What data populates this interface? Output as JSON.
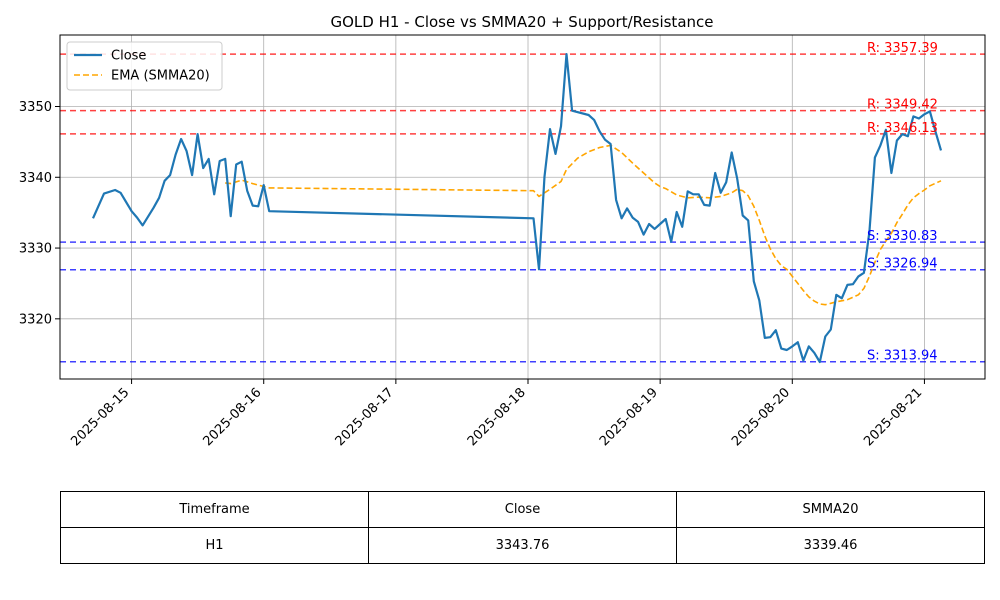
{
  "chart_data": {
    "type": "line",
    "title": "GOLD H1 - Close vs SMMA20 + Support/Resistance",
    "xlabel": "",
    "ylabel": "",
    "xlim": [
      "2025-08-14 11:00",
      "2025-08-21 11:00"
    ],
    "ylim": [
      3311.5,
      3360.1
    ],
    "x_ticks": [
      "2025-08-15",
      "2025-08-16",
      "2025-08-17",
      "2025-08-18",
      "2025-08-19",
      "2025-08-20",
      "2025-08-21"
    ],
    "y_ticks": [
      3320,
      3330,
      3340,
      3350
    ],
    "grid": true,
    "legend_position": "top-left",
    "series": [
      {
        "name": "Close",
        "color": "#1f77b4",
        "style": "solid",
        "points": [
          [
            "2025-08-14 17:00",
            3334.2
          ],
          [
            "2025-08-14 19:00",
            3337.7
          ],
          [
            "2025-08-14 21:00",
            3338.2
          ],
          [
            "2025-08-14 22:00",
            3337.8
          ],
          [
            "2025-08-15 00:00",
            3335.2
          ],
          [
            "2025-08-15 01:00",
            3334.3
          ],
          [
            "2025-08-15 02:00",
            3333.2
          ],
          [
            "2025-08-15 04:00",
            3335.7
          ],
          [
            "2025-08-15 05:00",
            3337.1
          ],
          [
            "2025-08-15 06:00",
            3339.5
          ],
          [
            "2025-08-15 07:00",
            3340.3
          ],
          [
            "2025-08-15 08:00",
            3343.2
          ],
          [
            "2025-08-15 09:00",
            3345.4
          ],
          [
            "2025-08-15 10:00",
            3343.7
          ],
          [
            "2025-08-15 11:00",
            3340.3
          ],
          [
            "2025-08-15 12:00",
            3346.1
          ],
          [
            "2025-08-15 13:00",
            3341.3
          ],
          [
            "2025-08-15 14:00",
            3342.6
          ],
          [
            "2025-08-15 15:00",
            3337.6
          ],
          [
            "2025-08-15 16:00",
            3342.3
          ],
          [
            "2025-08-15 17:00",
            3342.6
          ],
          [
            "2025-08-15 18:00",
            3334.5
          ],
          [
            "2025-08-15 19:00",
            3341.8
          ],
          [
            "2025-08-15 20:00",
            3342.2
          ],
          [
            "2025-08-15 21:00",
            3338.1
          ],
          [
            "2025-08-15 22:00",
            3336.0
          ],
          [
            "2025-08-15 23:00",
            3335.9
          ],
          [
            "2025-08-16 00:00",
            3338.9
          ],
          [
            "2025-08-16 01:00",
            3335.2
          ],
          [
            "2025-08-18 01:00",
            3334.2
          ],
          [
            "2025-08-18 02:00",
            3327.0
          ],
          [
            "2025-08-18 03:00",
            3340.1
          ],
          [
            "2025-08-18 04:00",
            3346.8
          ],
          [
            "2025-08-18 05:00",
            3343.3
          ],
          [
            "2025-08-18 06:00",
            3347.2
          ],
          [
            "2025-08-18 07:00",
            3357.4
          ],
          [
            "2025-08-18 08:00",
            3349.4
          ],
          [
            "2025-08-18 11:00",
            3348.8
          ],
          [
            "2025-08-18 12:00",
            3348.1
          ],
          [
            "2025-08-18 13:00",
            3346.5
          ],
          [
            "2025-08-18 14:00",
            3345.3
          ],
          [
            "2025-08-18 15:00",
            3344.7
          ],
          [
            "2025-08-18 16:00",
            3336.8
          ],
          [
            "2025-08-18 17:00",
            3334.2
          ],
          [
            "2025-08-18 18:00",
            3335.6
          ],
          [
            "2025-08-18 19:00",
            3334.3
          ],
          [
            "2025-08-18 20:00",
            3333.7
          ],
          [
            "2025-08-18 21:00",
            3331.9
          ],
          [
            "2025-08-18 22:00",
            3333.4
          ],
          [
            "2025-08-18 23:00",
            3332.7
          ],
          [
            "2025-08-19 00:00",
            3333.4
          ],
          [
            "2025-08-19 01:00",
            3334.1
          ],
          [
            "2025-08-19 02:00",
            3330.9
          ],
          [
            "2025-08-19 03:00",
            3335.1
          ],
          [
            "2025-08-19 04:00",
            3333.0
          ],
          [
            "2025-08-19 05:00",
            3338.0
          ],
          [
            "2025-08-19 06:00",
            3337.6
          ],
          [
            "2025-08-19 07:00",
            3337.6
          ],
          [
            "2025-08-19 08:00",
            3336.1
          ],
          [
            "2025-08-19 09:00",
            3336.0
          ],
          [
            "2025-08-19 10:00",
            3340.6
          ],
          [
            "2025-08-19 11:00",
            3337.8
          ],
          [
            "2025-08-19 12:00",
            3339.3
          ],
          [
            "2025-08-19 13:00",
            3343.5
          ],
          [
            "2025-08-19 14:00",
            3339.8
          ],
          [
            "2025-08-19 15:00",
            3334.6
          ],
          [
            "2025-08-19 16:00",
            3333.9
          ],
          [
            "2025-08-19 17:00",
            3325.3
          ],
          [
            "2025-08-19 18:00",
            3322.6
          ],
          [
            "2025-08-19 19:00",
            3317.3
          ],
          [
            "2025-08-19 20:00",
            3317.4
          ],
          [
            "2025-08-19 21:00",
            3318.4
          ],
          [
            "2025-08-19 22:00",
            3315.8
          ],
          [
            "2025-08-19 23:00",
            3315.6
          ],
          [
            "2025-08-20 00:00",
            3316.1
          ],
          [
            "2025-08-20 01:00",
            3316.7
          ],
          [
            "2025-08-20 02:00",
            3314.1
          ],
          [
            "2025-08-20 03:00",
            3316.1
          ],
          [
            "2025-08-20 04:00",
            3315.2
          ],
          [
            "2025-08-20 05:00",
            3313.9
          ],
          [
            "2025-08-20 06:00",
            3317.5
          ],
          [
            "2025-08-20 07:00",
            3318.5
          ],
          [
            "2025-08-20 08:00",
            3323.4
          ],
          [
            "2025-08-20 09:00",
            3322.9
          ],
          [
            "2025-08-20 10:00",
            3324.8
          ],
          [
            "2025-08-20 11:00",
            3324.9
          ],
          [
            "2025-08-20 12:00",
            3326.0
          ],
          [
            "2025-08-20 13:00",
            3326.5
          ],
          [
            "2025-08-20 14:00",
            3332.3
          ],
          [
            "2025-08-20 15:00",
            3342.8
          ],
          [
            "2025-08-20 16:00",
            3344.5
          ],
          [
            "2025-08-20 17:00",
            3346.7
          ],
          [
            "2025-08-20 18:00",
            3340.6
          ],
          [
            "2025-08-20 19:00",
            3345.2
          ],
          [
            "2025-08-20 20:00",
            3346.1
          ],
          [
            "2025-08-20 21:00",
            3345.8
          ],
          [
            "2025-08-20 22:00",
            3348.6
          ],
          [
            "2025-08-20 23:00",
            3348.3
          ],
          [
            "2025-08-21 00:00",
            3348.9
          ],
          [
            "2025-08-21 01:00",
            3349.3
          ],
          [
            "2025-08-21 02:00",
            3346.5
          ],
          [
            "2025-08-21 03:00",
            3343.8
          ]
        ]
      },
      {
        "name": "EMA (SMMA20)",
        "color": "#ffa500",
        "style": "dashed",
        "points": [
          [
            "2025-08-15 17:00",
            3339.2
          ],
          [
            "2025-08-15 18:00",
            3339.1
          ],
          [
            "2025-08-15 20:00",
            3339.6
          ],
          [
            "2025-08-15 22:00",
            3339.1
          ],
          [
            "2025-08-16 00:00",
            3338.7
          ],
          [
            "2025-08-16 01:00",
            3338.5
          ],
          [
            "2025-08-18 01:00",
            3338.1
          ],
          [
            "2025-08-18 02:00",
            3337.3
          ],
          [
            "2025-08-18 04:00",
            3338.3
          ],
          [
            "2025-08-18 06:00",
            3339.4
          ],
          [
            "2025-08-18 07:00",
            3341.1
          ],
          [
            "2025-08-18 09:00",
            3342.7
          ],
          [
            "2025-08-18 11:00",
            3343.6
          ],
          [
            "2025-08-18 13:00",
            3344.2
          ],
          [
            "2025-08-18 15:00",
            3344.5
          ],
          [
            "2025-08-18 17:00",
            3343.5
          ],
          [
            "2025-08-18 19:00",
            3342.0
          ],
          [
            "2025-08-18 21:00",
            3340.6
          ],
          [
            "2025-08-18 23:00",
            3339.2
          ],
          [
            "2025-08-19 00:00",
            3338.7
          ],
          [
            "2025-08-19 01:00",
            3338.4
          ],
          [
            "2025-08-19 03:00",
            3337.5
          ],
          [
            "2025-08-19 05:00",
            3337.1
          ],
          [
            "2025-08-19 07:00",
            3337.2
          ],
          [
            "2025-08-19 09:00",
            3337.1
          ],
          [
            "2025-08-19 11:00",
            3337.3
          ],
          [
            "2025-08-19 13:00",
            3337.8
          ],
          [
            "2025-08-19 14:00",
            3338.3
          ],
          [
            "2025-08-19 15:00",
            3338.1
          ],
          [
            "2025-08-19 16:00",
            3337.4
          ],
          [
            "2025-08-19 17:00",
            3335.9
          ],
          [
            "2025-08-19 18:00",
            3333.9
          ],
          [
            "2025-08-19 19:00",
            3331.7
          ],
          [
            "2025-08-19 20:00",
            3329.9
          ],
          [
            "2025-08-19 21:00",
            3328.5
          ],
          [
            "2025-08-19 22:00",
            3327.5
          ],
          [
            "2025-08-19 23:00",
            3327.0
          ],
          [
            "2025-08-20 00:00",
            3326.0
          ],
          [
            "2025-08-20 01:00",
            3325.0
          ],
          [
            "2025-08-20 02:00",
            3324.0
          ],
          [
            "2025-08-20 03:00",
            3323.1
          ],
          [
            "2025-08-20 04:00",
            3322.5
          ],
          [
            "2025-08-20 05:00",
            3322.1
          ],
          [
            "2025-08-20 06:00",
            3322.0
          ],
          [
            "2025-08-20 07:00",
            3322.2
          ],
          [
            "2025-08-20 08:00",
            3322.4
          ],
          [
            "2025-08-20 10:00",
            3322.7
          ],
          [
            "2025-08-20 12:00",
            3323.4
          ],
          [
            "2025-08-20 13:00",
            3324.3
          ],
          [
            "2025-08-20 14:00",
            3326.0
          ],
          [
            "2025-08-20 15:00",
            3328.0
          ],
          [
            "2025-08-20 16:00",
            3329.8
          ],
          [
            "2025-08-20 17:00",
            3331.0
          ],
          [
            "2025-08-20 18:00",
            3332.1
          ],
          [
            "2025-08-20 19:00",
            3333.6
          ],
          [
            "2025-08-20 20:00",
            3334.8
          ],
          [
            "2025-08-20 21:00",
            3336.1
          ],
          [
            "2025-08-20 22:00",
            3337.1
          ],
          [
            "2025-08-20 23:00",
            3337.7
          ],
          [
            "2025-08-21 00:00",
            3338.2
          ],
          [
            "2025-08-21 01:00",
            3338.8
          ],
          [
            "2025-08-21 03:00",
            3339.5
          ]
        ]
      }
    ],
    "resistance": [
      {
        "label": "R: 3357.39",
        "value": 3357.39,
        "color": "#ff0000"
      },
      {
        "label": "R: 3349.42",
        "value": 3349.42,
        "color": "#ff0000"
      },
      {
        "label": "R: 3346.13",
        "value": 3346.13,
        "color": "#ff0000"
      }
    ],
    "support": [
      {
        "label": "S: 3330.83",
        "value": 3330.83,
        "color": "#0000ff"
      },
      {
        "label": "S: 3326.94",
        "value": 3326.94,
        "color": "#0000ff"
      },
      {
        "label": "S: 3313.94",
        "value": 3313.94,
        "color": "#0000ff"
      }
    ],
    "table": {
      "headers": [
        "Timeframe",
        "Close",
        "SMMA20"
      ],
      "rows": [
        [
          "H1",
          "3343.76",
          "3339.46"
        ]
      ]
    }
  }
}
